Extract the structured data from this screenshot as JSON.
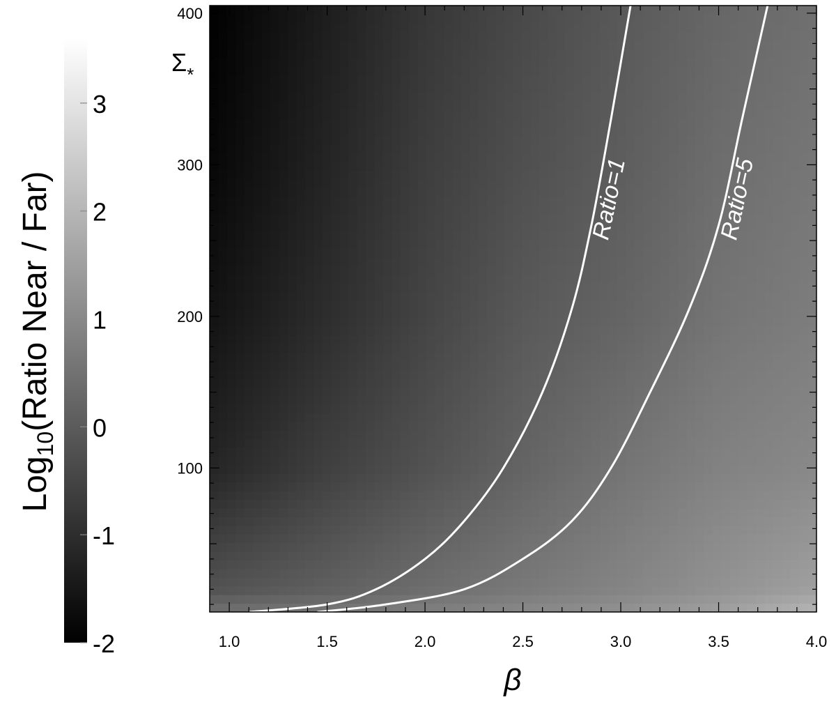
{
  "colors": {
    "background": "#ffffff",
    "frame": "#000000",
    "contour": "#ffffff",
    "label": "#ffffff"
  },
  "chart_data": {
    "type": "heatmap",
    "colormap": "grayscale (black to white)",
    "x": {
      "label": "β",
      "lim": [
        0.9,
        4.0
      ],
      "ticks": [
        1.0,
        1.5,
        2.0,
        2.5,
        3.0,
        3.5,
        4.0
      ],
      "tick_labels": [
        "1.0",
        "1.5",
        "2.0",
        "2.5",
        "3.0",
        "3.5",
        "4.0"
      ]
    },
    "y": {
      "label_main": "Σ",
      "label_sub": "*",
      "lim": [
        5,
        405
      ],
      "ticks": [
        100,
        200,
        300,
        400
      ],
      "tick_labels": [
        "100",
        "200",
        "300",
        "400"
      ]
    },
    "colorbar": {
      "label_prefix": "Log",
      "label_sub": "10",
      "label_suffix": "(Ratio Near / Far)",
      "range": [
        -2,
        3.6
      ],
      "ticks": [
        -2,
        -1,
        0,
        1,
        2,
        3
      ],
      "tick_labels": [
        "-2",
        "-1",
        "0",
        "1",
        "2",
        "3"
      ]
    },
    "contours": [
      {
        "label": "Ratio=1",
        "log10_value": 0,
        "points": [
          [
            1.1,
            5
          ],
          [
            1.5,
            10
          ],
          [
            1.75,
            20
          ],
          [
            2.0,
            40
          ],
          [
            2.2,
            65
          ],
          [
            2.4,
            100
          ],
          [
            2.6,
            150
          ],
          [
            2.75,
            205
          ],
          [
            2.85,
            260
          ],
          [
            2.95,
            330
          ],
          [
            3.05,
            405
          ]
        ]
      },
      {
        "label": "Ratio=5",
        "log10_value": 0.7,
        "points": [
          [
            1.45,
            5
          ],
          [
            1.8,
            10
          ],
          [
            2.2,
            20
          ],
          [
            2.5,
            40
          ],
          [
            2.75,
            65
          ],
          [
            2.95,
            100
          ],
          [
            3.15,
            150
          ],
          [
            3.35,
            205
          ],
          [
            3.5,
            260
          ],
          [
            3.62,
            330
          ],
          [
            3.75,
            405
          ]
        ]
      }
    ],
    "field_samples": {
      "beta": [
        0.9,
        1.5,
        2.0,
        2.5,
        3.0,
        3.5,
        4.0
      ],
      "sigma": [
        5,
        20,
        100,
        200,
        300,
        405
      ],
      "log10_ratio": [
        [
          0.5,
          0.6,
          0.8,
          1.0,
          1.2,
          1.5,
          2.0
        ],
        [
          -0.2,
          0.1,
          0.4,
          0.65,
          0.9,
          1.2,
          1.5
        ],
        [
          -1.2,
          -0.6,
          -0.2,
          0.2,
          0.55,
          0.85,
          1.0
        ],
        [
          -1.6,
          -1.0,
          -0.5,
          -0.05,
          0.2,
          0.55,
          0.75
        ],
        [
          -1.85,
          -1.2,
          -0.65,
          -0.25,
          0.05,
          0.4,
          0.6
        ],
        [
          -2.0,
          -1.35,
          -0.8,
          -0.4,
          -0.05,
          0.25,
          0.45
        ]
      ]
    }
  }
}
